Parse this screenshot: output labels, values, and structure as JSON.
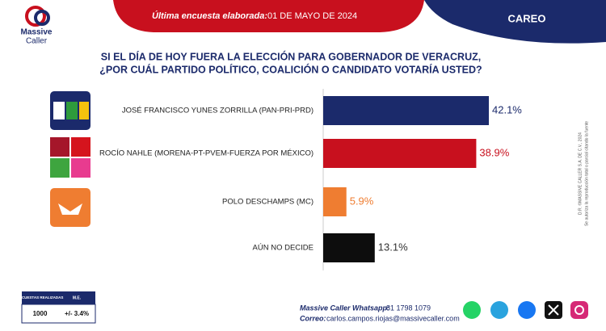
{
  "header": {
    "brand": "Massive",
    "brand_sub": "Caller",
    "survey_label": "Última encuesta elaborada:",
    "survey_date": "01 DE MAYO DE 2024",
    "tag": "CAREO"
  },
  "chart_data": {
    "type": "hbar",
    "title": "SI EL DÍA DE HOY FUERA LA ELECCIÓN PARA GOBERNADOR DE VERACRUZ,",
    "subtitle": "¿POR CUÁL PARTIDO POLÍTICO, COALICIÓN O CANDIDATO VOTARÍA USTED?",
    "categories": [
      "JOSÉ FRANCISCO YUNES ZORRILLA (PAN-PRI-PRD)",
      "ROCÍO NAHLE (MORENA-PT-PVEM-FUERZA POR MÉXICO)",
      "POLO DESCHAMPS (MC)",
      "AÚN NO DECIDE"
    ],
    "values": [
      42.1,
      38.9,
      5.9,
      13.1
    ],
    "value_labels": [
      "42.1%",
      "38.9%",
      "5.9%",
      "13.1%"
    ],
    "colors": [
      "#1b2a6b",
      "#c8101e",
      "#ef7d31",
      "#0d0d0d"
    ],
    "label_colors": [
      "#1b2a6b",
      "#c8101e",
      "#ef7d31",
      "#333333"
    ]
  },
  "side_note": {
    "copyright": "D.R. ©MASSIVE CALLER S.A. DE C.V., 2024",
    "notice": "Se autoriza la reproducción total o parcial citando la fuente"
  },
  "table": {
    "headers": [
      "ENCUESTAS REALIZADAS",
      "M.E."
    ],
    "rows": [
      [
        "1000",
        "+/- 3.4%"
      ]
    ]
  },
  "footer": {
    "whatsapp_label": "Massive Caller Whatsapp:",
    "whatsapp": "81 1798 1079",
    "email_label": "Correo:",
    "email": "carlos.campos.riojas@massivecaller.com"
  }
}
